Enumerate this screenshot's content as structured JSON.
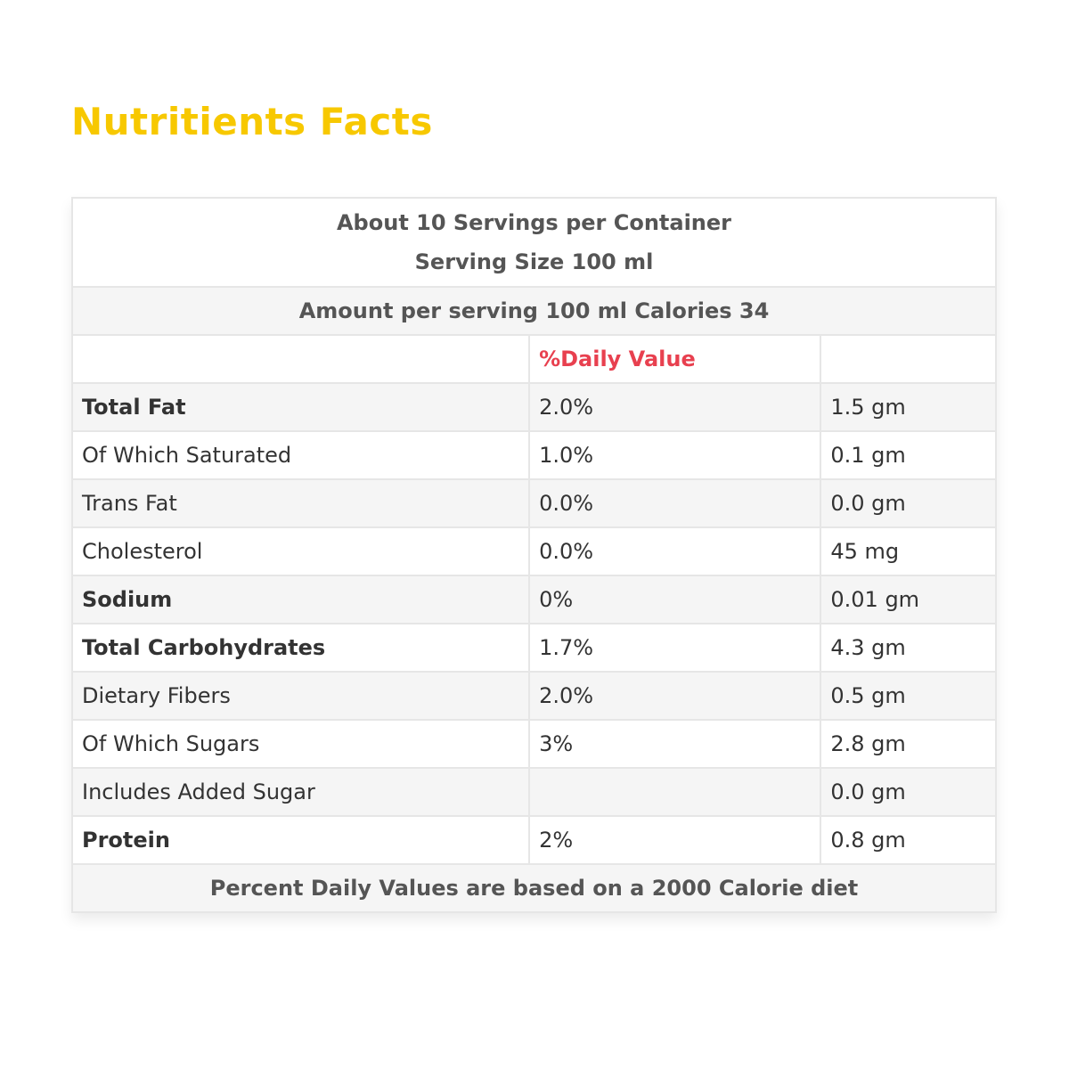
{
  "title": "Nutritients Facts",
  "table": {
    "servings": "About 10 Servings per Container",
    "serving_size": "Serving Size 100 ml",
    "amount": "Amount per serving 100 ml Calories 34",
    "daily_value_header": "%Daily Value",
    "rows": [
      {
        "name": "Total Fat",
        "bold": true,
        "daily_value": "2.0%",
        "amount": "1.5 gm"
      },
      {
        "name": "Of Which Saturated",
        "bold": false,
        "daily_value": "1.0%",
        "amount": "0.1 gm"
      },
      {
        "name": "Trans Fat",
        "bold": false,
        "daily_value": "0.0%",
        "amount": "0.0 gm"
      },
      {
        "name": "Cholesterol",
        "bold": false,
        "daily_value": "0.0%",
        "amount": "45 mg"
      },
      {
        "name": "Sodium",
        "bold": true,
        "daily_value": "0%",
        "amount": "0.01 gm"
      },
      {
        "name": "Total Carbohydrates",
        "bold": true,
        "daily_value": "1.7%",
        "amount": "4.3 gm"
      },
      {
        "name": "Dietary Fibers",
        "bold": false,
        "daily_value": "2.0%",
        "amount": "0.5 gm"
      },
      {
        "name": "Of Which Sugars",
        "bold": false,
        "daily_value": "3%",
        "amount": "2.8 gm"
      },
      {
        "name": "Includes Added Sugar",
        "bold": false,
        "amount": "0.0 gm"
      },
      {
        "name": "Protein",
        "bold": true,
        "daily_value": "2%",
        "amount": "0.8 gm"
      }
    ],
    "footer": "Percent Daily Values are based on a 2000 Calorie diet"
  }
}
